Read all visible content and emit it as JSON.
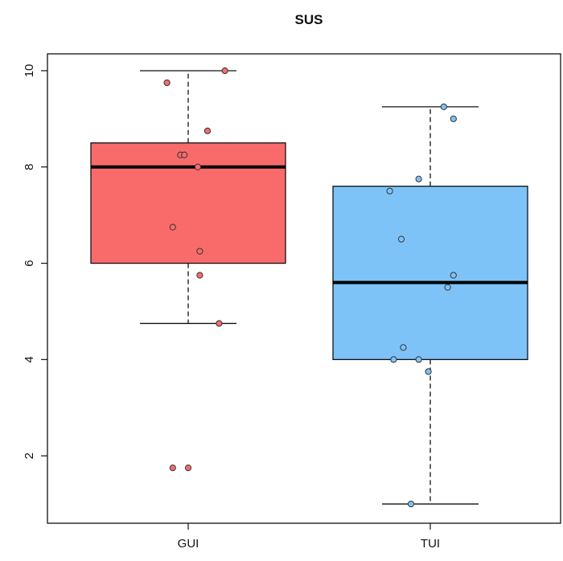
{
  "chart_data": {
    "type": "boxplot",
    "title": "SUS",
    "xlabel": "",
    "ylabel": "",
    "ylim": [
      0.6,
      10.35
    ],
    "yticks": [
      2,
      4,
      6,
      8,
      10
    ],
    "ytick_labels": [
      "2",
      "4",
      "6",
      "8",
      "10"
    ],
    "categories": [
      "GUI",
      "TUI"
    ],
    "grid": false,
    "legend": "none",
    "boxes": [
      {
        "category": "GUI",
        "color": "#f96b6b",
        "whisker_low": 4.75,
        "q1": 6.0,
        "median": 8.0,
        "q3": 8.5,
        "whisker_high": 10.0,
        "points": [
          {
            "x_jitter": -0.11,
            "y": 9.75
          },
          {
            "x_jitter": 0.19,
            "y": 10.0
          },
          {
            "x_jitter": 0.1,
            "y": 8.75
          },
          {
            "x_jitter": -0.04,
            "y": 8.25
          },
          {
            "x_jitter": -0.02,
            "y": 8.25
          },
          {
            "x_jitter": 0.05,
            "y": 8.0
          },
          {
            "x_jitter": -0.08,
            "y": 6.75
          },
          {
            "x_jitter": 0.06,
            "y": 6.25
          },
          {
            "x_jitter": 0.06,
            "y": 5.75
          },
          {
            "x_jitter": 0.16,
            "y": 4.75
          },
          {
            "x_jitter": -0.08,
            "y": 1.75
          },
          {
            "x_jitter": 0.0,
            "y": 1.75
          }
        ]
      },
      {
        "category": "TUI",
        "color": "#7ec3f7",
        "whisker_low": 1.0,
        "q1": 4.0,
        "median": 5.6,
        "q3": 7.6,
        "whisker_high": 9.25,
        "points": [
          {
            "x_jitter": 0.07,
            "y": 9.25
          },
          {
            "x_jitter": 0.12,
            "y": 9.0
          },
          {
            "x_jitter": -0.06,
            "y": 7.75
          },
          {
            "x_jitter": -0.21,
            "y": 7.5
          },
          {
            "x_jitter": -0.15,
            "y": 6.5
          },
          {
            "x_jitter": 0.12,
            "y": 5.75
          },
          {
            "x_jitter": 0.09,
            "y": 5.5
          },
          {
            "x_jitter": -0.14,
            "y": 4.25
          },
          {
            "x_jitter": -0.19,
            "y": 4.0
          },
          {
            "x_jitter": -0.06,
            "y": 4.0
          },
          {
            "x_jitter": -0.01,
            "y": 3.75
          },
          {
            "x_jitter": -0.1,
            "y": 1.0
          }
        ]
      }
    ]
  }
}
